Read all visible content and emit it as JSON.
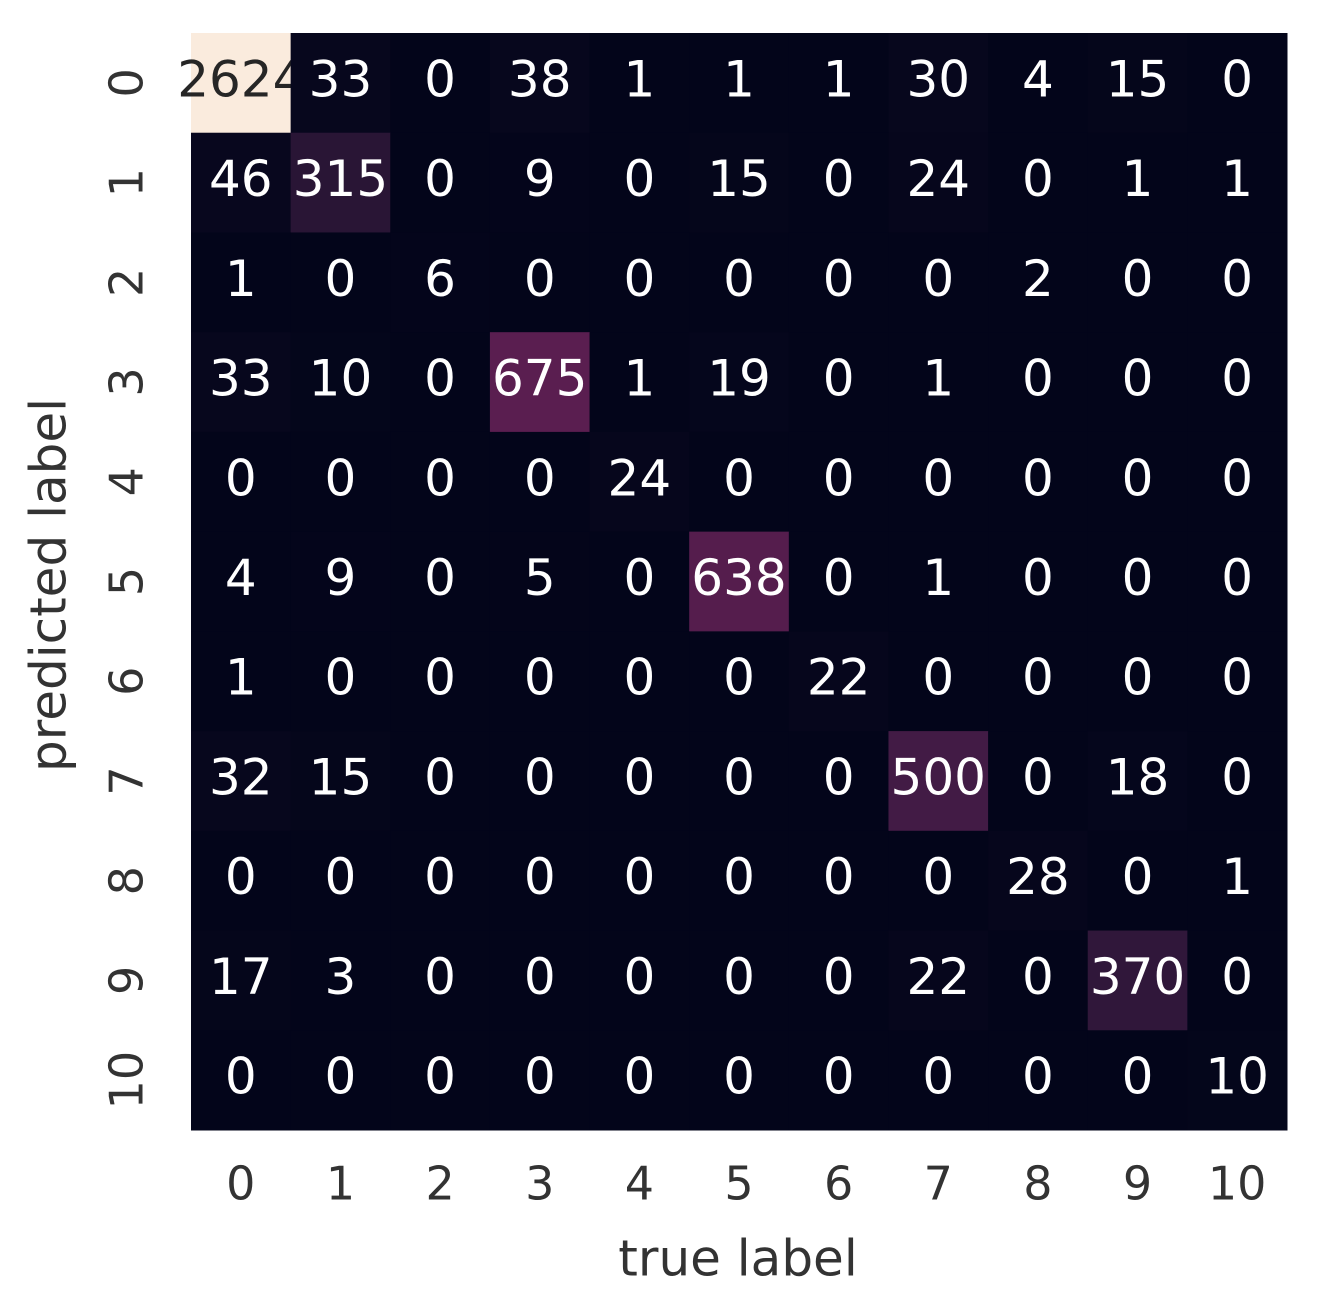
{
  "chart_data": {
    "type": "heatmap",
    "xlabel": "true label",
    "ylabel": "predicted label",
    "x": [
      "0",
      "1",
      "2",
      "3",
      "4",
      "5",
      "6",
      "7",
      "8",
      "9",
      "10"
    ],
    "y": [
      "0",
      "1",
      "2",
      "3",
      "4",
      "5",
      "6",
      "7",
      "8",
      "9",
      "10"
    ],
    "colormap": "rocket",
    "z": [
      [
        2624,
        33,
        0,
        38,
        1,
        1,
        1,
        30,
        4,
        15,
        0
      ],
      [
        46,
        315,
        0,
        9,
        0,
        15,
        0,
        24,
        0,
        1,
        1
      ],
      [
        1,
        0,
        6,
        0,
        0,
        0,
        0,
        0,
        2,
        0,
        0
      ],
      [
        33,
        10,
        0,
        675,
        1,
        19,
        0,
        1,
        0,
        0,
        0
      ],
      [
        0,
        0,
        0,
        0,
        24,
        0,
        0,
        0,
        0,
        0,
        0
      ],
      [
        4,
        9,
        0,
        5,
        0,
        638,
        0,
        1,
        0,
        0,
        0
      ],
      [
        1,
        0,
        0,
        0,
        0,
        0,
        22,
        0,
        0,
        0,
        0
      ],
      [
        32,
        15,
        0,
        0,
        0,
        0,
        0,
        500,
        0,
        18,
        0
      ],
      [
        0,
        0,
        0,
        0,
        0,
        0,
        0,
        0,
        28,
        0,
        1
      ],
      [
        17,
        3,
        0,
        0,
        0,
        0,
        0,
        22,
        0,
        370,
        0
      ],
      [
        0,
        0,
        0,
        0,
        0,
        0,
        0,
        0,
        0,
        0,
        10
      ]
    ]
  }
}
